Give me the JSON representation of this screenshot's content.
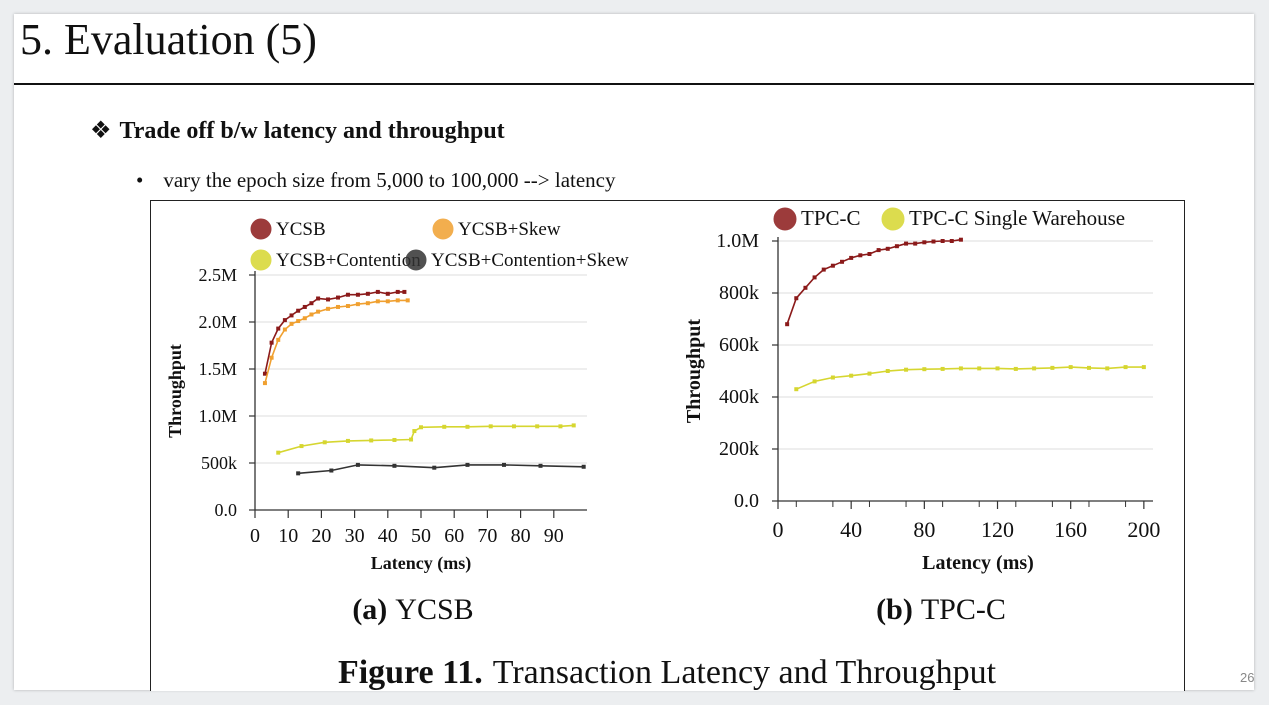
{
  "slide": {
    "title": "5. Evaluation (5)",
    "bullet1_mark": "❖",
    "bullet1": "Trade off b/w latency and throughput",
    "bullet2_mark": "•",
    "bullet2": "vary the epoch size  from 5,000 to 100,000 --> latency",
    "page_number": "26"
  },
  "figure": {
    "caption_bold": "Figure 11.",
    "caption_text": "Transaction Latency and Throughput"
  },
  "chart_data": [
    {
      "type": "line",
      "subtitle_bold": "(a)",
      "subtitle": "YCSB",
      "xlabel": "Latency (ms)",
      "ylabel": "Throughput",
      "xlim": [
        0,
        100
      ],
      "ylim": [
        0,
        2500000
      ],
      "xticks": [
        0,
        10,
        20,
        30,
        40,
        50,
        60,
        70,
        80,
        90
      ],
      "yticks": [
        {
          "v": 0,
          "label": "0.0"
        },
        {
          "v": 500000,
          "label": "500k"
        },
        {
          "v": 1000000,
          "label": "1.0M"
        },
        {
          "v": 1500000,
          "label": "1.5M"
        },
        {
          "v": 2000000,
          "label": "2.0M"
        },
        {
          "v": 2500000,
          "label": "2.5M"
        }
      ],
      "grid": true,
      "legend_position": "top",
      "series": [
        {
          "name": "YCSB",
          "color": "#8b1a1a",
          "points": [
            [
              3,
              1450000
            ],
            [
              5,
              1780000
            ],
            [
              7,
              1930000
            ],
            [
              9,
              2020000
            ],
            [
              11,
              2070000
            ],
            [
              13,
              2120000
            ],
            [
              15,
              2160000
            ],
            [
              17,
              2200000
            ],
            [
              19,
              2250000
            ],
            [
              22,
              2240000
            ],
            [
              25,
              2260000
            ],
            [
              28,
              2290000
            ],
            [
              31,
              2290000
            ],
            [
              34,
              2300000
            ],
            [
              37,
              2320000
            ],
            [
              40,
              2300000
            ],
            [
              43,
              2320000
            ],
            [
              45,
              2320000
            ]
          ]
        },
        {
          "name": "YCSB+Skew",
          "color": "#f0a030",
          "points": [
            [
              3,
              1350000
            ],
            [
              5,
              1620000
            ],
            [
              7,
              1810000
            ],
            [
              9,
              1920000
            ],
            [
              11,
              1980000
            ],
            [
              13,
              2010000
            ],
            [
              15,
              2040000
            ],
            [
              17,
              2080000
            ],
            [
              19,
              2110000
            ],
            [
              22,
              2140000
            ],
            [
              25,
              2160000
            ],
            [
              28,
              2170000
            ],
            [
              31,
              2190000
            ],
            [
              34,
              2200000
            ],
            [
              37,
              2220000
            ],
            [
              40,
              2220000
            ],
            [
              43,
              2230000
            ],
            [
              46,
              2230000
            ]
          ]
        },
        {
          "name": "YCSB+Contention",
          "color": "#d6d630",
          "points": [
            [
              7,
              610000
            ],
            [
              14,
              680000
            ],
            [
              21,
              720000
            ],
            [
              28,
              735000
            ],
            [
              35,
              740000
            ],
            [
              42,
              745000
            ],
            [
              47,
              750000
            ],
            [
              48,
              840000
            ],
            [
              50,
              880000
            ],
            [
              57,
              885000
            ],
            [
              64,
              885000
            ],
            [
              71,
              890000
            ],
            [
              78,
              890000
            ],
            [
              85,
              890000
            ],
            [
              92,
              890000
            ],
            [
              96,
              900000
            ]
          ]
        },
        {
          "name": "YCSB+Contention+Skew",
          "color": "#333333",
          "points": [
            [
              13,
              390000
            ],
            [
              23,
              420000
            ],
            [
              31,
              480000
            ],
            [
              42,
              470000
            ],
            [
              54,
              450000
            ],
            [
              64,
              480000
            ],
            [
              75,
              480000
            ],
            [
              86,
              470000
            ],
            [
              99,
              460000
            ]
          ]
        }
      ]
    },
    {
      "type": "line",
      "subtitle_bold": "(b)",
      "subtitle": "TPC-C",
      "xlabel": "Latency (ms)",
      "ylabel": "Throughput",
      "xlim": [
        0,
        205
      ],
      "ylim": [
        0,
        1000000
      ],
      "xticks": [
        0,
        40,
        80,
        120,
        160,
        200
      ],
      "yticks": [
        {
          "v": 0,
          "label": "0.0"
        },
        {
          "v": 200000,
          "label": "200k"
        },
        {
          "v": 400000,
          "label": "400k"
        },
        {
          "v": 600000,
          "label": "600k"
        },
        {
          "v": 800000,
          "label": "800k"
        },
        {
          "v": 1000000,
          "label": "1.0M"
        }
      ],
      "grid": true,
      "legend_position": "top",
      "series": [
        {
          "name": "TPC-C",
          "color": "#8b1a1a",
          "points": [
            [
              5,
              680000
            ],
            [
              10,
              780000
            ],
            [
              15,
              820000
            ],
            [
              20,
              860000
            ],
            [
              25,
              890000
            ],
            [
              30,
              905000
            ],
            [
              35,
              920000
            ],
            [
              40,
              935000
            ],
            [
              45,
              945000
            ],
            [
              50,
              950000
            ],
            [
              55,
              965000
            ],
            [
              60,
              970000
            ],
            [
              65,
              980000
            ],
            [
              70,
              990000
            ],
            [
              75,
              990000
            ],
            [
              80,
              995000
            ],
            [
              85,
              998000
            ],
            [
              90,
              1000000
            ],
            [
              95,
              1000000
            ],
            [
              100,
              1005000
            ]
          ]
        },
        {
          "name": "TPC-C Single Warehouse",
          "color": "#d6d630",
          "points": [
            [
              10,
              430000
            ],
            [
              20,
              460000
            ],
            [
              30,
              475000
            ],
            [
              40,
              482000
            ],
            [
              50,
              490000
            ],
            [
              60,
              500000
            ],
            [
              70,
              505000
            ],
            [
              80,
              507000
            ],
            [
              90,
              508000
            ],
            [
              100,
              510000
            ],
            [
              110,
              510000
            ],
            [
              120,
              510000
            ],
            [
              130,
              508000
            ],
            [
              140,
              510000
            ],
            [
              150,
              512000
            ],
            [
              160,
              515000
            ],
            [
              170,
              512000
            ],
            [
              180,
              510000
            ],
            [
              190,
              515000
            ],
            [
              200,
              515000
            ]
          ]
        }
      ]
    }
  ]
}
